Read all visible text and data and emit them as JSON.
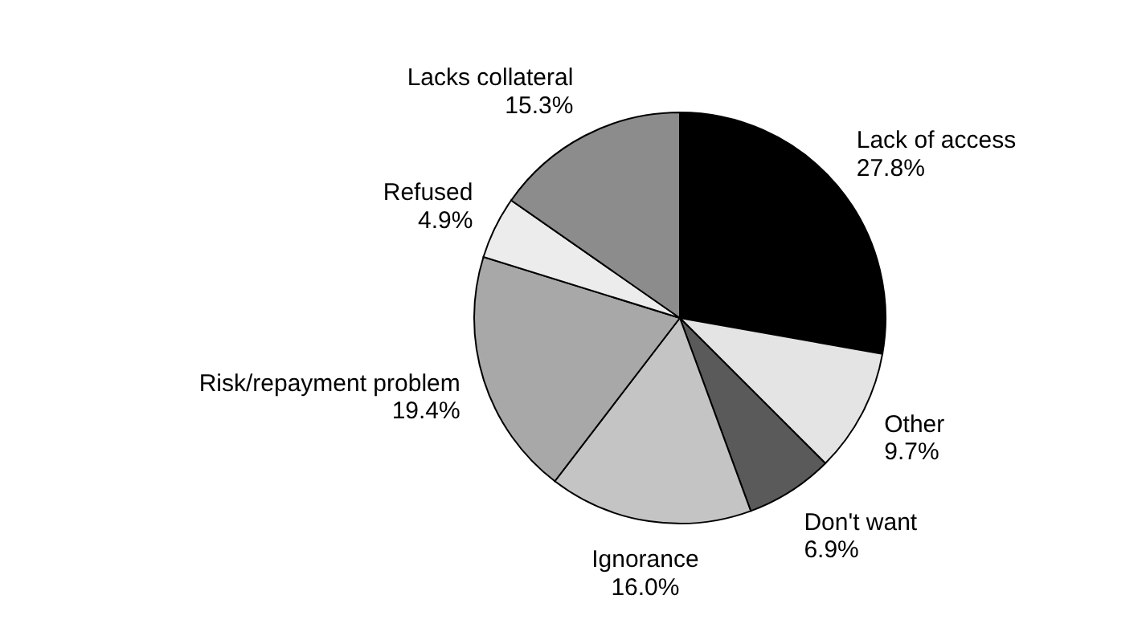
{
  "chart_data": {
    "type": "pie",
    "categories": [
      "Lack of access",
      "Other",
      "Don't want",
      "Ignorance",
      "Risk/repayment problem",
      "Refused",
      "Lacks collateral"
    ],
    "values": [
      27.8,
      9.7,
      6.9,
      16.0,
      19.4,
      4.9,
      15.3
    ],
    "value_labels": [
      "27.8%",
      "9.7%",
      "6.9%",
      "16.0%",
      "19.4%",
      "4.9%",
      "15.3%"
    ],
    "colors": [
      "#000000",
      "#e4e4e4",
      "#5a5a5a",
      "#c4c4c4",
      "#a8a8a8",
      "#ececec",
      "#8c8c8c"
    ]
  }
}
